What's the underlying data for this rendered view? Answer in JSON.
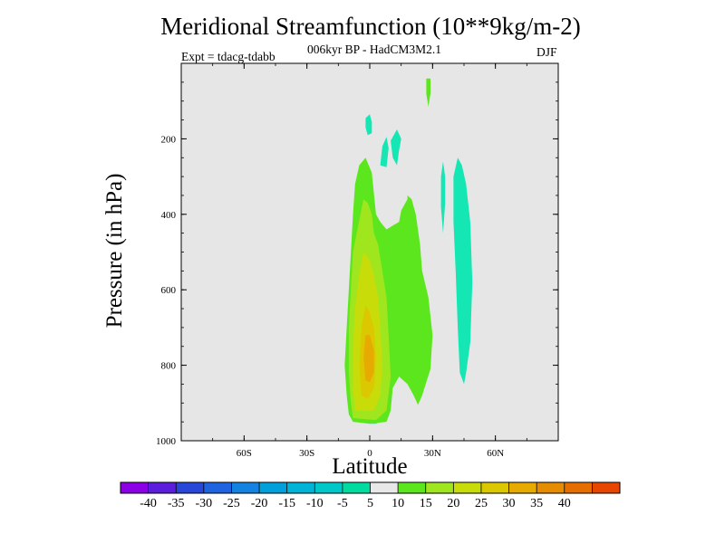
{
  "chart_data": {
    "type": "heatmap",
    "title": "Meridional Streamfunction (10**9kg/m-2)",
    "subtitle": "006kyr BP - HadCM3M2.1",
    "left_string": "Expt = tdacg-tdabb",
    "right_string": "DJF",
    "xlabel": "Latitude",
    "ylabel": "Pressure (in hPa)",
    "xlim": [
      -90,
      90
    ],
    "ylim": [
      1000,
      0
    ],
    "x_ticks": [
      {
        "value": -60,
        "label": "60S"
      },
      {
        "value": -30,
        "label": "30S"
      },
      {
        "value": 0,
        "label": "0"
      },
      {
        "value": 30,
        "label": "30N"
      },
      {
        "value": 60,
        "label": "60N"
      }
    ],
    "y_ticks": [
      {
        "value": 200,
        "label": "200"
      },
      {
        "value": 400,
        "label": "400"
      },
      {
        "value": 600,
        "label": "600"
      },
      {
        "value": 800,
        "label": "800"
      },
      {
        "value": 1000,
        "label": "1000"
      }
    ],
    "background_color": "#e6e6e6",
    "colorbar": {
      "boundaries": [
        -45,
        -40,
        -35,
        -30,
        -25,
        -20,
        -15,
        -10,
        -5,
        5,
        10,
        15,
        20,
        25,
        30,
        35,
        40,
        45
      ],
      "labels": [
        "-40",
        "-35",
        "-30",
        "-25",
        "-20",
        "-15",
        "-10",
        "-5",
        "5",
        "10",
        "15",
        "20",
        "25",
        "30",
        "35",
        "40"
      ],
      "colors": [
        "#8c00e6",
        "#5a1edc",
        "#2846d7",
        "#1e64e1",
        "#1482e1",
        "#00a0dc",
        "#00b4d7",
        "#00c8c8",
        "#00dca0",
        "#e8e8e8",
        "#5ce61e",
        "#a0e61e",
        "#c8dc0a",
        "#dcc800",
        "#e6aa00",
        "#e68c00",
        "#e66e00",
        "#e64600"
      ]
    },
    "regions": [
      {
        "level": "-5 to -10",
        "color": "#14e6b4",
        "points": [
          [
            0,
            955
          ],
          [
            -4,
            945
          ],
          [
            -6,
            910
          ],
          [
            -7,
            850
          ],
          [
            -7,
            780
          ],
          [
            -6,
            700
          ],
          [
            -5,
            620
          ],
          [
            -5,
            550
          ],
          [
            -5,
            460
          ],
          [
            -4,
            360
          ],
          [
            -2,
            300
          ],
          [
            1,
            355
          ],
          [
            3,
            420
          ],
          [
            6,
            470
          ],
          [
            8,
            500
          ],
          [
            9,
            560
          ],
          [
            9,
            650
          ],
          [
            9,
            760
          ],
          [
            9,
            900
          ],
          [
            6,
            945
          ],
          [
            3,
            955
          ]
        ]
      },
      {
        "level": "5 to 10",
        "color": "#5ce61e",
        "points": [
          [
            -8,
            950
          ],
          [
            -10,
            930
          ],
          [
            -11,
            880
          ],
          [
            -12,
            800
          ],
          [
            -11,
            700
          ],
          [
            -10,
            600
          ],
          [
            -9,
            500
          ],
          [
            -8,
            400
          ],
          [
            -7,
            320
          ],
          [
            -5,
            270
          ],
          [
            -2,
            250
          ],
          [
            1,
            290
          ],
          [
            3,
            400
          ],
          [
            5,
            420
          ],
          [
            8,
            440
          ],
          [
            11,
            430
          ],
          [
            14,
            420
          ],
          [
            15,
            390
          ],
          [
            18,
            360
          ],
          [
            18,
            350
          ],
          [
            20,
            360
          ],
          [
            22,
            400
          ],
          [
            24,
            480
          ],
          [
            25,
            550
          ],
          [
            28,
            620
          ],
          [
            30,
            720
          ],
          [
            29,
            810
          ],
          [
            25,
            880
          ],
          [
            23,
            905
          ],
          [
            21,
            880
          ],
          [
            18,
            850
          ],
          [
            14,
            830
          ],
          [
            11,
            860
          ],
          [
            10,
            920
          ],
          [
            8,
            950
          ],
          [
            0,
            955
          ]
        ]
      },
      {
        "level": "10 to 15",
        "color": "#a0e61e",
        "points": [
          [
            -8,
            940
          ],
          [
            -9,
            900
          ],
          [
            -10,
            820
          ],
          [
            -10,
            700
          ],
          [
            -9,
            600
          ],
          [
            -8,
            500
          ],
          [
            -3,
            360
          ],
          [
            -1,
            370
          ],
          [
            1,
            400
          ],
          [
            2,
            450
          ],
          [
            4,
            480
          ],
          [
            6,
            550
          ],
          [
            8,
            620
          ],
          [
            9,
            720
          ],
          [
            10,
            830
          ],
          [
            8,
            920
          ],
          [
            3,
            945
          ]
        ]
      },
      {
        "level": "15 to 20",
        "color": "#c8dc0a",
        "points": [
          [
            -7,
            920
          ],
          [
            -8,
            860
          ],
          [
            -8,
            760
          ],
          [
            -7,
            650
          ],
          [
            -5,
            560
          ],
          [
            -3,
            500
          ],
          [
            0,
            520
          ],
          [
            2,
            560
          ],
          [
            4,
            620
          ],
          [
            5,
            700
          ],
          [
            6,
            800
          ],
          [
            5,
            880
          ],
          [
            2,
            920
          ]
        ]
      },
      {
        "level": "20 to 25",
        "color": "#dcc800",
        "points": [
          [
            -4,
            880
          ],
          [
            -5,
            800
          ],
          [
            -4,
            700
          ],
          [
            -2,
            640
          ],
          [
            0,
            660
          ],
          [
            2,
            700
          ],
          [
            3,
            780
          ],
          [
            2,
            860
          ],
          [
            -1,
            890
          ]
        ]
      },
      {
        "level": "25 to 30",
        "color": "#e6aa00",
        "points": [
          [
            -2,
            840
          ],
          [
            -3,
            780
          ],
          [
            -2,
            720
          ],
          [
            0,
            720
          ],
          [
            2,
            760
          ],
          [
            2,
            820
          ],
          [
            0,
            845
          ]
        ]
      },
      {
        "level": "5 to 10",
        "color": "#5ce61e",
        "points": [
          [
            28,
            115
          ],
          [
            27,
            80
          ],
          [
            27,
            40
          ],
          [
            29,
            40
          ],
          [
            29,
            80
          ]
        ]
      },
      {
        "level": "-5 to -10",
        "color": "#14e6b4",
        "points": [
          [
            -1,
            190
          ],
          [
            -2,
            170
          ],
          [
            -2,
            145
          ],
          [
            0,
            135
          ],
          [
            1,
            155
          ],
          [
            1,
            185
          ]
        ]
      },
      {
        "level": "-5 to -10",
        "color": "#14e6b4",
        "points": [
          [
            5,
            270
          ],
          [
            6,
            220
          ],
          [
            8,
            195
          ],
          [
            9,
            225
          ],
          [
            8,
            275
          ]
        ]
      },
      {
        "level": "-5 to -10",
        "color": "#14e6b4",
        "points": [
          [
            11,
            250
          ],
          [
            10,
            205
          ],
          [
            13,
            175
          ],
          [
            15,
            200
          ],
          [
            14,
            230
          ],
          [
            13,
            270
          ]
        ]
      },
      {
        "level": "-5 to -10",
        "color": "#14e6b4",
        "points": [
          [
            35,
            450
          ],
          [
            34,
            380
          ],
          [
            34,
            300
          ],
          [
            35,
            260
          ],
          [
            36,
            300
          ],
          [
            36,
            370
          ]
        ]
      },
      {
        "level": "-5 to -10",
        "color": "#14e6b4",
        "points": [
          [
            43,
            820
          ],
          [
            42,
            700
          ],
          [
            41,
            550
          ],
          [
            40,
            420
          ],
          [
            40,
            300
          ],
          [
            42,
            250
          ],
          [
            44,
            270
          ],
          [
            46,
            320
          ],
          [
            48,
            420
          ],
          [
            49,
            580
          ],
          [
            48,
            740
          ],
          [
            46,
            820
          ],
          [
            45,
            850
          ]
        ]
      }
    ]
  }
}
